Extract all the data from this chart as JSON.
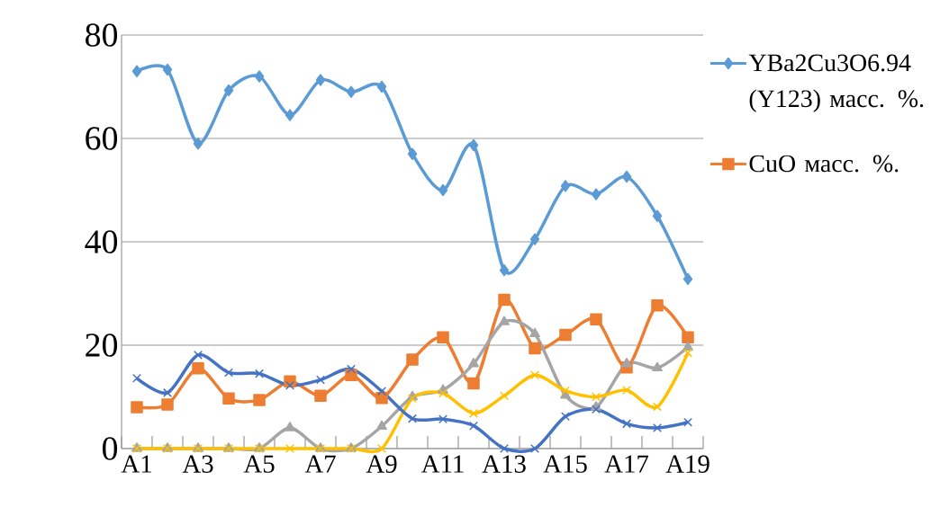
{
  "chart_data": {
    "type": "line",
    "categories": [
      "A1",
      null,
      "A3",
      null,
      "A5",
      null,
      "A7",
      null,
      "A9",
      null,
      "A11",
      null,
      "A13",
      null,
      "A15",
      null,
      "A17",
      null,
      "A19"
    ],
    "series": [
      {
        "name": "YBa2Cu3O6.94 (Y123) масс. %.",
        "color": "#5b9bd5",
        "marker": "diamond",
        "values": [
          73,
          73.3,
          59,
          69.3,
          72,
          64.5,
          71.3,
          69,
          70,
          57,
          50,
          58.7,
          34.5,
          40.5,
          50.8,
          49.2,
          52.6,
          45,
          32.8
        ]
      },
      {
        "name": "CuO масс. %.",
        "color": "#ed7d31",
        "marker": "square",
        "values": [
          8,
          8.5,
          15.5,
          9.7,
          9.4,
          13,
          10.2,
          14.2,
          9.8,
          17.2,
          21.5,
          12.6,
          28.8,
          19.4,
          22,
          25,
          15.7,
          27.7,
          21.5
        ]
      },
      {
        "color": "#a5a5a5",
        "marker": "triangle",
        "values": [
          0,
          0,
          0,
          0,
          0,
          4,
          0,
          0,
          4.3,
          10,
          11.3,
          16.4,
          24.5,
          22.2,
          10.3,
          8,
          16.4,
          15.6,
          19.6
        ]
      },
      {
        "color": "#ffc000",
        "marker": "cross",
        "values": [
          0,
          0,
          0,
          0,
          0,
          0,
          0,
          0,
          0,
          9.7,
          10.7,
          6.8,
          10.2,
          14.2,
          11.2,
          10,
          11.3,
          8.1,
          18.5
        ]
      },
      {
        "color": "#4472c4",
        "marker": "cross",
        "values": [
          13.6,
          10.8,
          18.1,
          14.7,
          14.5,
          12.2,
          13.3,
          15.4,
          11.1,
          5.8,
          5.7,
          4.4,
          0,
          0,
          6.2,
          7.6,
          4.8,
          4,
          5.1
        ]
      }
    ],
    "ylim": [
      0,
      80
    ],
    "yticks": [
      0,
      20,
      40,
      60,
      80
    ],
    "grid": "y",
    "legend": "right",
    "line_style": "solid"
  }
}
